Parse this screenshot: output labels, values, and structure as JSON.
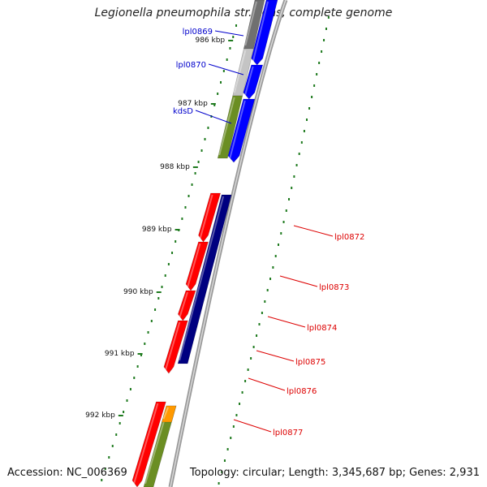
{
  "title": "Legionella pneumophila str. Lens, complete genome",
  "footer": {
    "accession": "Accession: NC_006369",
    "topology": "Topology: circular; Length: 3,345,687 bp; Genes: 2,931"
  },
  "colors": {
    "forward_cds": "#0000ff",
    "reverse_cds": "#ff0000",
    "navy_track": "#000080",
    "olive_track": "#6b8e23",
    "label_forward": "#0000cc",
    "label_reverse": "#dd0000",
    "backbone": "#8c8c8c",
    "ticks": "#1e7a1e"
  },
  "ticks": [
    "986 kbp",
    "987 kbp",
    "988 kbp",
    "989 kbp",
    "990 kbp",
    "991 kbp",
    "992 kbp"
  ],
  "genes": [
    {
      "label": "lpl0869",
      "strand": "forward"
    },
    {
      "label": "lpl0870",
      "strand": "forward"
    },
    {
      "label": "kdsD",
      "strand": "forward"
    },
    {
      "label": "lpl0872",
      "strand": "reverse"
    },
    {
      "label": "lpl0873",
      "strand": "reverse"
    },
    {
      "label": "lpl0874",
      "strand": "reverse"
    },
    {
      "label": "lpl0875",
      "strand": "reverse"
    },
    {
      "label": "lpl0876",
      "strand": "reverse"
    },
    {
      "label": "lpl0877",
      "strand": "reverse"
    }
  ]
}
